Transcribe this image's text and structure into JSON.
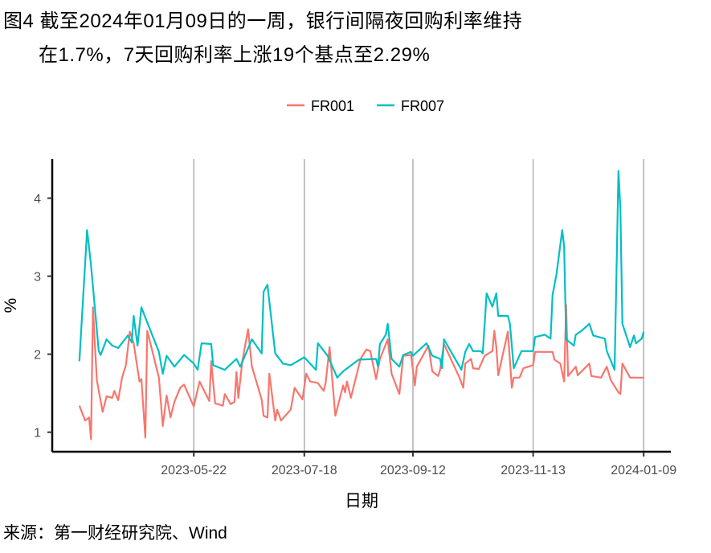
{
  "title": {
    "line1": "图4  截至2024年01月09日的一周，银行间隔夜回购利率维持",
    "line2": "在1.7%，7天回购利率上涨19个基点至2.29%"
  },
  "source": "来源：第一财经研究院、Wind",
  "chart_data": {
    "type": "line",
    "xlabel": "日期",
    "ylabel": "%",
    "xlim": [
      "2023-03-10",
      "2024-01-23"
    ],
    "ylim": [
      0.75,
      4.5
    ],
    "x_ticks": [
      "2023-05-22",
      "2023-07-18",
      "2023-09-12",
      "2023-11-13",
      "2024-01-09"
    ],
    "y_ticks": [
      1,
      2,
      3,
      4
    ],
    "grid": "vertical lines at x ticks",
    "legend_position": "top",
    "series": [
      {
        "name": "FR001",
        "color": "#F8766D",
        "points": [
          [
            "2023-03-24",
            1.34
          ],
          [
            "2023-03-27",
            1.15
          ],
          [
            "2023-03-29",
            1.19
          ],
          [
            "2023-03-30",
            0.91
          ],
          [
            "2023-03-31",
            2.6
          ],
          [
            "2023-04-02",
            1.67
          ],
          [
            "2023-04-05",
            1.26
          ],
          [
            "2023-04-07",
            1.46
          ],
          [
            "2023-04-10",
            1.44
          ],
          [
            "2023-04-11",
            1.53
          ],
          [
            "2023-04-13",
            1.41
          ],
          [
            "2023-04-15",
            1.7
          ],
          [
            "2023-04-17",
            1.86
          ],
          [
            "2023-04-19",
            2.29
          ],
          [
            "2023-04-21",
            2.14
          ],
          [
            "2023-04-24",
            1.65
          ],
          [
            "2023-04-25",
            1.68
          ],
          [
            "2023-04-27",
            0.93
          ],
          [
            "2023-04-28",
            2.3
          ],
          [
            "2023-05-04",
            1.7
          ],
          [
            "2023-05-06",
            1.08
          ],
          [
            "2023-05-08",
            1.47
          ],
          [
            "2023-05-10",
            1.19
          ],
          [
            "2023-05-12",
            1.39
          ],
          [
            "2023-05-15",
            1.57
          ],
          [
            "2023-05-17",
            1.61
          ],
          [
            "2023-05-22",
            1.33
          ],
          [
            "2023-05-25",
            1.65
          ],
          [
            "2023-05-30",
            1.4
          ],
          [
            "2023-05-31",
            1.91
          ],
          [
            "2023-06-02",
            1.37
          ],
          [
            "2023-06-06",
            1.34
          ],
          [
            "2023-06-07",
            1.49
          ],
          [
            "2023-06-10",
            1.36
          ],
          [
            "2023-06-12",
            1.39
          ],
          [
            "2023-06-13",
            1.77
          ],
          [
            "2023-06-14",
            1.44
          ],
          [
            "2023-06-16",
            1.91
          ],
          [
            "2023-06-19",
            2.32
          ],
          [
            "2023-06-21",
            1.84
          ],
          [
            "2023-06-26",
            1.42
          ],
          [
            "2023-06-27",
            1.21
          ],
          [
            "2023-06-29",
            1.19
          ],
          [
            "2023-06-30",
            1.75
          ],
          [
            "2023-07-03",
            1.15
          ],
          [
            "2023-07-04",
            1.29
          ],
          [
            "2023-07-06",
            1.15
          ],
          [
            "2023-07-11",
            1.29
          ],
          [
            "2023-07-13",
            1.57
          ],
          [
            "2023-07-17",
            1.42
          ],
          [
            "2023-07-19",
            1.75
          ],
          [
            "2023-07-21",
            1.65
          ],
          [
            "2023-07-25",
            1.63
          ],
          [
            "2023-07-28",
            1.53
          ],
          [
            "2023-07-29",
            1.63
          ],
          [
            "2023-07-31",
            2.09
          ],
          [
            "2023-08-03",
            1.21
          ],
          [
            "2023-08-07",
            1.6
          ],
          [
            "2023-08-08",
            1.51
          ],
          [
            "2023-08-09",
            1.65
          ],
          [
            "2023-08-11",
            1.44
          ],
          [
            "2023-08-16",
            1.94
          ],
          [
            "2023-08-19",
            2.06
          ],
          [
            "2023-08-21",
            2.04
          ],
          [
            "2023-08-24",
            1.68
          ],
          [
            "2023-08-26",
            1.94
          ],
          [
            "2023-08-30",
            2.19
          ],
          [
            "2023-09-01",
            1.75
          ],
          [
            "2023-09-05",
            1.49
          ],
          [
            "2023-09-07",
            1.98
          ],
          [
            "2023-09-11",
            1.99
          ],
          [
            "2023-09-13",
            1.6
          ],
          [
            "2023-09-14",
            1.84
          ],
          [
            "2023-09-20",
            2.11
          ],
          [
            "2023-09-22",
            1.78
          ],
          [
            "2023-09-25",
            1.72
          ],
          [
            "2023-09-26",
            1.8
          ],
          [
            "2023-09-28",
            2.13
          ],
          [
            "2023-10-06",
            1.7
          ],
          [
            "2023-10-08",
            1.57
          ],
          [
            "2023-10-09",
            1.88
          ],
          [
            "2023-10-12",
            1.94
          ],
          [
            "2023-10-13",
            1.82
          ],
          [
            "2023-10-16",
            1.81
          ],
          [
            "2023-10-19",
            1.98
          ],
          [
            "2023-10-23",
            2.04
          ],
          [
            "2023-10-24",
            2.3
          ],
          [
            "2023-10-25",
            2.09
          ],
          [
            "2023-10-26",
            1.73
          ],
          [
            "2023-10-31",
            2.29
          ],
          [
            "2023-11-02",
            1.57
          ],
          [
            "2023-11-03",
            1.7
          ],
          [
            "2023-11-06",
            1.7
          ],
          [
            "2023-11-08",
            1.82
          ],
          [
            "2023-11-13",
            1.86
          ],
          [
            "2023-11-14",
            2.03
          ],
          [
            "2023-11-23",
            2.03
          ],
          [
            "2023-11-24",
            1.93
          ],
          [
            "2023-11-27",
            1.88
          ],
          [
            "2023-11-29",
            1.65
          ],
          [
            "2023-11-30",
            2.63
          ],
          [
            "2023-12-01",
            1.72
          ],
          [
            "2023-12-05",
            1.84
          ],
          [
            "2023-12-06",
            1.73
          ],
          [
            "2023-12-12",
            1.88
          ],
          [
            "2023-12-13",
            1.72
          ],
          [
            "2023-12-18",
            1.7
          ],
          [
            "2023-12-21",
            1.84
          ],
          [
            "2023-12-23",
            1.67
          ],
          [
            "2023-12-27",
            1.51
          ],
          [
            "2023-12-28",
            1.49
          ],
          [
            "2023-12-29",
            1.88
          ],
          [
            "2024-01-02",
            1.7
          ],
          [
            "2024-01-09",
            1.7
          ]
        ]
      },
      {
        "name": "FR007",
        "color": "#00BFC4",
        "points": [
          [
            "2023-03-24",
            1.91
          ],
          [
            "2023-03-28",
            3.59
          ],
          [
            "2023-03-30",
            3.14
          ],
          [
            "2023-04-03",
            2.04
          ],
          [
            "2023-04-04",
            1.99
          ],
          [
            "2023-04-07",
            2.19
          ],
          [
            "2023-04-10",
            2.11
          ],
          [
            "2023-04-13",
            2.08
          ],
          [
            "2023-04-18",
            2.24
          ],
          [
            "2023-04-20",
            2.15
          ],
          [
            "2023-04-21",
            2.49
          ],
          [
            "2023-04-23",
            2.11
          ],
          [
            "2023-04-25",
            2.6
          ],
          [
            "2023-04-27",
            2.47
          ],
          [
            "2023-05-04",
            2.03
          ],
          [
            "2023-05-06",
            1.75
          ],
          [
            "2023-05-08",
            1.98
          ],
          [
            "2023-05-12",
            1.84
          ],
          [
            "2023-05-17",
            1.99
          ],
          [
            "2023-05-22",
            1.88
          ],
          [
            "2023-05-24",
            1.8
          ],
          [
            "2023-05-26",
            2.14
          ],
          [
            "2023-05-31",
            2.13
          ],
          [
            "2023-06-01",
            1.86
          ],
          [
            "2023-06-07",
            1.8
          ],
          [
            "2023-06-13",
            1.94
          ],
          [
            "2023-06-15",
            1.84
          ],
          [
            "2023-06-21",
            2.19
          ],
          [
            "2023-06-26",
            2.01
          ],
          [
            "2023-06-27",
            2.8
          ],
          [
            "2023-06-29",
            2.89
          ],
          [
            "2023-07-03",
            2.01
          ],
          [
            "2023-07-07",
            1.88
          ],
          [
            "2023-07-11",
            1.86
          ],
          [
            "2023-07-18",
            1.96
          ],
          [
            "2023-07-24",
            1.8
          ],
          [
            "2023-07-25",
            2.14
          ],
          [
            "2023-07-30",
            1.98
          ],
          [
            "2023-08-04",
            1.7
          ],
          [
            "2023-08-07",
            1.78
          ],
          [
            "2023-08-15",
            1.93
          ],
          [
            "2023-08-24",
            1.94
          ],
          [
            "2023-08-25",
            1.84
          ],
          [
            "2023-08-26",
            2.13
          ],
          [
            "2023-08-29",
            2.25
          ],
          [
            "2023-08-30",
            2.39
          ],
          [
            "2023-09-01",
            1.94
          ],
          [
            "2023-09-05",
            1.84
          ],
          [
            "2023-09-07",
            1.99
          ],
          [
            "2023-09-11",
            2.03
          ],
          [
            "2023-09-12",
            1.98
          ],
          [
            "2023-09-19",
            2.14
          ],
          [
            "2023-09-22",
            1.98
          ],
          [
            "2023-09-26",
            1.94
          ],
          [
            "2023-09-27",
            1.82
          ],
          [
            "2023-09-28",
            2.19
          ],
          [
            "2023-10-07",
            1.8
          ],
          [
            "2023-10-09",
            2.03
          ],
          [
            "2023-10-11",
            2.13
          ],
          [
            "2023-10-13",
            2.04
          ],
          [
            "2023-10-17",
            2.04
          ],
          [
            "2023-10-18",
            2.01
          ],
          [
            "2023-10-20",
            2.78
          ],
          [
            "2023-10-23",
            2.61
          ],
          [
            "2023-10-25",
            2.78
          ],
          [
            "2023-10-26",
            2.49
          ],
          [
            "2023-10-31",
            2.49
          ],
          [
            "2023-11-01",
            2.39
          ],
          [
            "2023-11-03",
            1.82
          ],
          [
            "2023-11-07",
            2.04
          ],
          [
            "2023-11-13",
            2.04
          ],
          [
            "2023-11-14",
            2.22
          ],
          [
            "2023-11-19",
            2.25
          ],
          [
            "2023-11-22",
            2.2
          ],
          [
            "2023-11-23",
            2.76
          ],
          [
            "2023-11-25",
            3.02
          ],
          [
            "2023-11-28",
            3.59
          ],
          [
            "2023-11-29",
            3.38
          ],
          [
            "2023-11-30",
            2.19
          ],
          [
            "2023-12-04",
            2.11
          ],
          [
            "2023-12-05",
            2.25
          ],
          [
            "2023-12-08",
            2.3
          ],
          [
            "2023-12-12",
            2.39
          ],
          [
            "2023-12-14",
            2.24
          ],
          [
            "2023-12-20",
            2.2
          ],
          [
            "2023-12-21",
            2.04
          ],
          [
            "2023-12-25",
            1.8
          ],
          [
            "2023-12-26",
            3.07
          ],
          [
            "2023-12-27",
            4.35
          ],
          [
            "2023-12-28",
            3.87
          ],
          [
            "2023-12-29",
            2.39
          ],
          [
            "2024-01-02",
            2.09
          ],
          [
            "2024-01-04",
            2.24
          ],
          [
            "2024-01-05",
            2.14
          ],
          [
            "2024-01-08",
            2.2
          ],
          [
            "2024-01-09",
            2.29
          ]
        ]
      }
    ]
  }
}
